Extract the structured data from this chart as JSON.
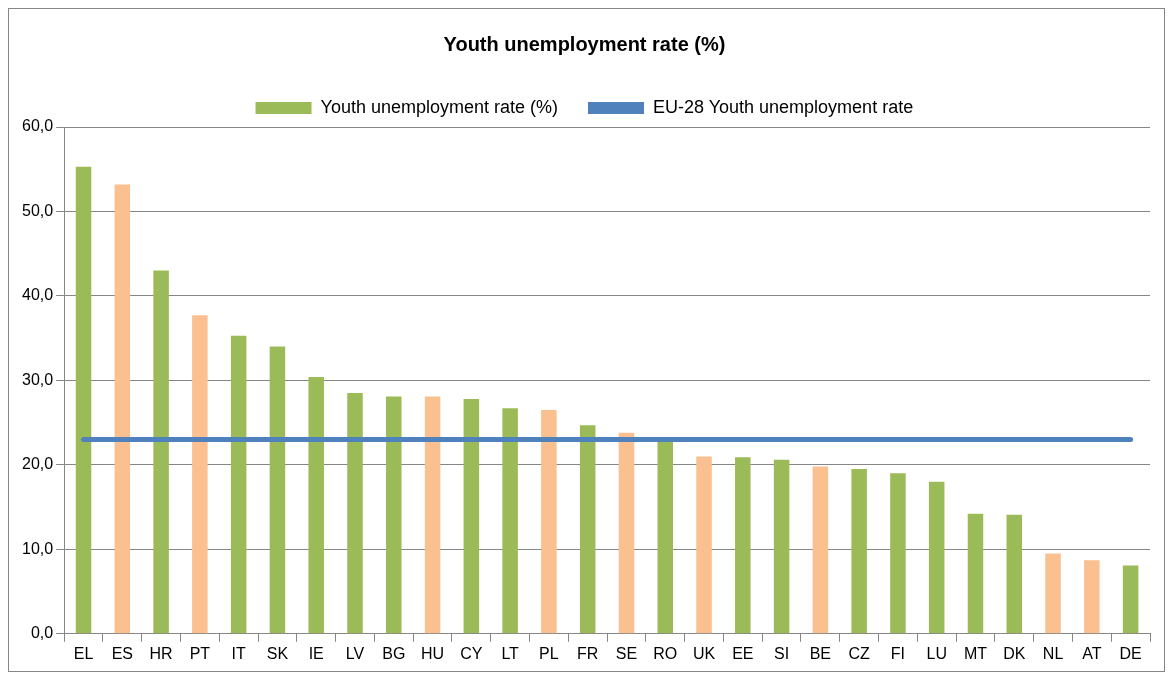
{
  "chart_data": {
    "type": "bar",
    "title": "Youth unemployment rate (%)",
    "categories": [
      "EL",
      "ES",
      "HR",
      "PT",
      "IT",
      "SK",
      "IE",
      "LV",
      "BG",
      "HU",
      "CY",
      "LT",
      "PL",
      "FR",
      "SE",
      "RO",
      "UK",
      "EE",
      "SI",
      "BE",
      "CZ",
      "FI",
      "LU",
      "MT",
      "DK",
      "NL",
      "AT",
      "DE"
    ],
    "series": [
      {
        "name": "Youth unemployment rate (%)",
        "color": "#9bbb59",
        "colors": [
          "#9bbb59",
          "#fac090",
          "#9bbb59",
          "#fac090",
          "#9bbb59",
          "#9bbb59",
          "#9bbb59",
          "#9bbb59",
          "#9bbb59",
          "#fac090",
          "#9bbb59",
          "#9bbb59",
          "#fac090",
          "#9bbb59",
          "#fac090",
          "#9bbb59",
          "#fac090",
          "#9bbb59",
          "#9bbb59",
          "#fac090",
          "#9bbb59",
          "#9bbb59",
          "#9bbb59",
          "#9bbb59",
          "#9bbb59",
          "#fac090",
          "#fac090",
          "#9bbb59"
        ],
        "values": [
          55.3,
          53.2,
          43.0,
          37.7,
          35.3,
          34.0,
          30.4,
          28.5,
          28.1,
          28.1,
          27.8,
          26.7,
          26.5,
          24.7,
          23.8,
          22.9,
          21.0,
          20.9,
          20.6,
          19.8,
          19.5,
          19.0,
          18.0,
          14.2,
          14.1,
          9.5,
          8.7,
          8.1
        ]
      },
      {
        "name": "EU-28 Youth unemployment rate",
        "type": "line",
        "color": "#4f81bd",
        "values": [
          23.0,
          23.0,
          23.0,
          23.0,
          23.0,
          23.0,
          23.0,
          23.0,
          23.0,
          23.0,
          23.0,
          23.0,
          23.0,
          23.0,
          23.0,
          23.0,
          23.0,
          23.0,
          23.0,
          23.0,
          23.0,
          23.0,
          23.0,
          23.0,
          23.0,
          23.0,
          23.0,
          23.0
        ]
      }
    ],
    "ylim": [
      0,
      60
    ],
    "yticks": [
      {
        "value": 0,
        "label": "0,0"
      },
      {
        "value": 10,
        "label": "10,0"
      },
      {
        "value": 20,
        "label": "20,0"
      },
      {
        "value": 30,
        "label": "30,0"
      },
      {
        "value": 40,
        "label": "40,0"
      },
      {
        "value": 50,
        "label": "50,0"
      },
      {
        "value": 60,
        "label": "60,0"
      }
    ],
    "grid": "y",
    "legend": "top",
    "marker": "none",
    "line_style": "solid"
  }
}
